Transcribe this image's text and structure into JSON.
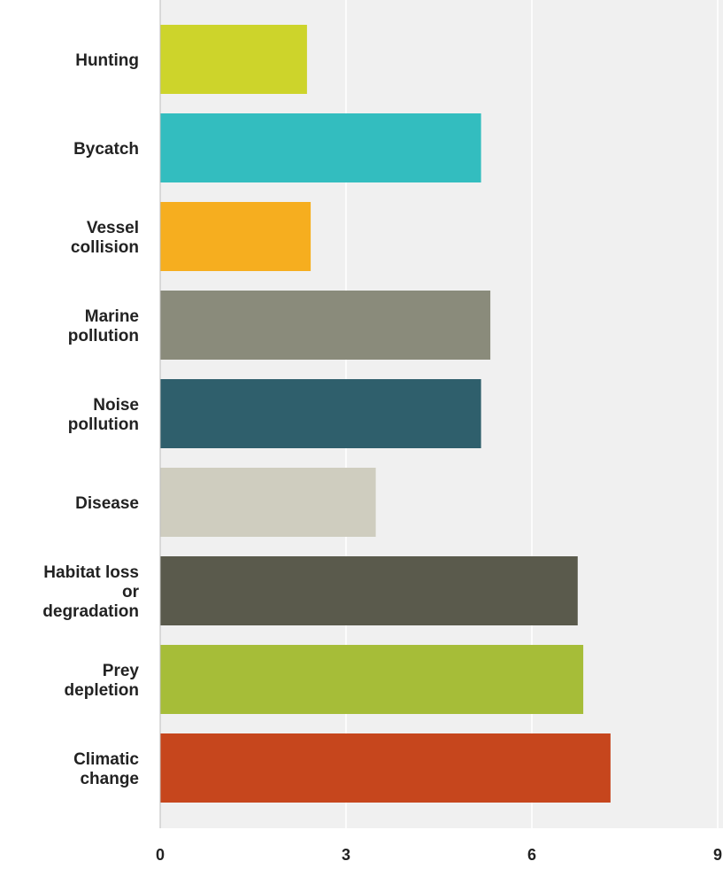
{
  "chart_data": {
    "type": "bar",
    "orientation": "horizontal",
    "title": "",
    "xlabel": "",
    "ylabel": "",
    "categories": [
      [
        "Hunting"
      ],
      [
        "Bycatch"
      ],
      [
        "Vessel",
        "collision"
      ],
      [
        "Marine",
        "pollution"
      ],
      [
        "Noise",
        "pollution"
      ],
      [
        "Disease"
      ],
      [
        "Habitat loss",
        "or",
        "degradation"
      ],
      [
        "Prey",
        "depletion"
      ],
      [
        "Climatic",
        "change"
      ]
    ],
    "values": [
      2.37,
      5.18,
      2.43,
      5.33,
      5.18,
      3.48,
      6.74,
      6.83,
      7.27
    ],
    "colors": [
      "#cdd42b",
      "#33bdbf",
      "#f6ae1f",
      "#8a8b7b",
      "#2f5f6c",
      "#cfcdbf",
      "#5a5a4c",
      "#a6bd38",
      "#c6461d"
    ],
    "xlim": [
      0,
      9
    ],
    "xticks": [
      0,
      3,
      6,
      9
    ],
    "grid": true,
    "legend": "none"
  }
}
